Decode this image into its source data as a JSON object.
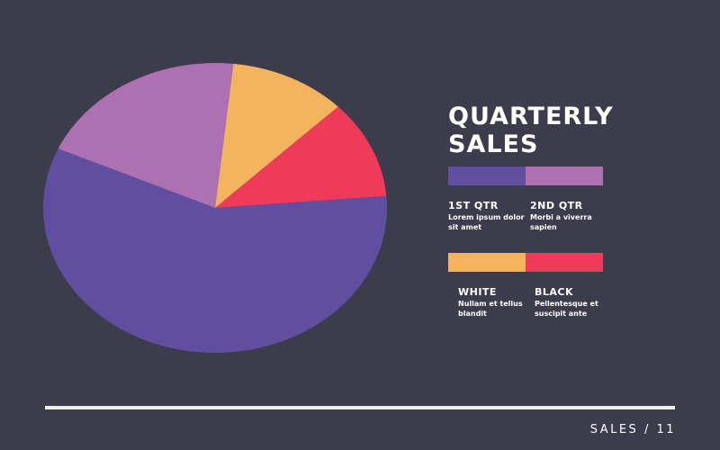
{
  "title_lines": [
    "QUARTERLY",
    "SALES"
  ],
  "footer": "SALES / 11",
  "colors": {
    "background": "#3d3c4c",
    "purple": "#614ea0",
    "lilac": "#ad70b1",
    "yellow": "#f4b35f",
    "red": "#ef3b59",
    "rule": "#f1efe3"
  },
  "legend": [
    {
      "label": "1ST QTR",
      "desc": "Lorem ipsum dolor sit amet",
      "color": "#614ea0"
    },
    {
      "label": "2ND QTR",
      "desc": "Morbi a viverra sapien",
      "color": "#ad70b1"
    },
    {
      "label": "WHITE",
      "desc": "Nullam et tellus blandit",
      "color": "#f4b35f"
    },
    {
      "label": "BLACK",
      "desc": "Pellentesque et suscipit ante",
      "color": "#ef3b59"
    }
  ],
  "chart_data": {
    "type": "pie",
    "categories": [
      "1ST QTR",
      "2ND QTR",
      "WHITE",
      "BLACK"
    ],
    "values": [
      58,
      20,
      11,
      11
    ],
    "colors": [
      "#614ea0",
      "#ad70b1",
      "#f4b35f",
      "#ef3b59"
    ]
  }
}
